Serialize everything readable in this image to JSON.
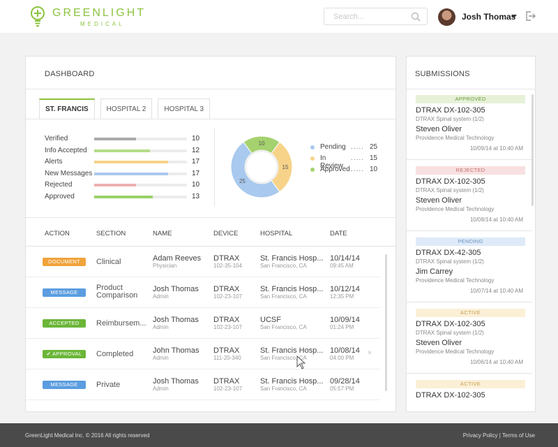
{
  "brand": {
    "name": "GREENLIGHT",
    "sub": "MEDICAL",
    "color": "#8cc43f"
  },
  "header": {
    "search_placeholder": "Search...",
    "user_name": "Josh Thomas"
  },
  "dashboard": {
    "title": "DASHBOARD",
    "tabs": [
      {
        "label": "ST. FRANCIS",
        "active": true
      },
      {
        "label": "HOSPITAL 2",
        "active": false
      },
      {
        "label": "HOSPITAL 3",
        "active": false
      }
    ],
    "stats": [
      {
        "label": "Verified",
        "value": "10",
        "fraction": 0.45,
        "color": "#a9a9a9"
      },
      {
        "label": "Info Accepted",
        "value": "12",
        "fraction": 0.6,
        "color": "#b4dc8a"
      },
      {
        "label": "Alerts",
        "value": "17",
        "fraction": 0.8,
        "color": "#f7d38a"
      },
      {
        "label": "New Messages",
        "value": "17",
        "fraction": 0.8,
        "color": "#a9c9ee"
      },
      {
        "label": "Rejected",
        "value": "10",
        "fraction": 0.45,
        "color": "#eeb0b0"
      },
      {
        "label": "Approved",
        "value": "13",
        "fraction": 0.63,
        "color": "#9ccf6a"
      }
    ],
    "donut": {
      "segments": [
        {
          "label": "Pending",
          "value": 25,
          "color": "#a9c9ee"
        },
        {
          "label": "In Review",
          "value": 15,
          "color": "#f7d38a"
        },
        {
          "label": "Approved",
          "value": 10,
          "color": "#a5d26f"
        }
      ]
    },
    "legend": [
      {
        "label": "Pending",
        "dots": ".....",
        "value": "25",
        "color": "#a9c9ee"
      },
      {
        "label": "In Review",
        "dots": ".....",
        "value": "15",
        "color": "#f7d38a"
      },
      {
        "label": "Approved",
        "dots": ".....",
        "value": "10",
        "color": "#a5d26f"
      }
    ],
    "table": {
      "headers": {
        "action": "ACTION",
        "section": "SECTION",
        "name": "NAME",
        "device": "DEVICE",
        "hospital": "HOSPITAL",
        "date": "DATE"
      },
      "rows": [
        {
          "badge": "DOCUMENT",
          "badge_color": "#f0a33b",
          "section1": "Clinical",
          "section2": "",
          "name": "Adam Reeves",
          "role": "Physician",
          "device": "DTRAX",
          "code": "102-35-104",
          "hospital": "St. Francis Hosp...",
          "city": "San Francisco, CA",
          "date": "10/14/14",
          "time": "09:45 AM"
        },
        {
          "badge": "MESSAGE",
          "badge_color": "#5b9de0",
          "section1": "Product",
          "section2": "Comparison",
          "name": "Josh Thomas",
          "role": "Admin",
          "device": "DTRAX",
          "code": "102-23-107",
          "hospital": "St. Francis Hosp...",
          "city": "San Francisco, CA",
          "date": "10/12/14",
          "time": "12:35 PM"
        },
        {
          "badge": "ACCEPTED",
          "badge_color": "#6bb638",
          "section1": "Reimbursem...",
          "section2": "",
          "name": "Josh Thomas",
          "role": "Admin",
          "device": "DTRAX",
          "code": "102-23-107",
          "hospital": "UCSF",
          "city": "San Francisco, CA",
          "date": "10/09/14",
          "time": "01:24 PM"
        },
        {
          "badge": "✔ APPROVAL",
          "badge_color": "#6bb638",
          "section1": "Completed",
          "section2": "",
          "name": "John Thomas",
          "role": "Admin",
          "device": "DTRAX",
          "code": "111-20-340",
          "hospital": "St. Francis Hosp...",
          "city": "San Francisco, CA",
          "date": "10/08/14",
          "time": "04:00 PM",
          "close": "×"
        },
        {
          "badge": "MESSAGE",
          "badge_color": "#5b9de0",
          "section1": "Private",
          "section2": "",
          "name": "Josh Thomas",
          "role": "Admin",
          "device": "DTRAX",
          "code": "102-23-107",
          "hospital": "St. Francis Hosp...",
          "city": "San Francisco, CA",
          "date": "09/28/14",
          "time": "05:57 PM"
        }
      ]
    }
  },
  "submissions": {
    "title": "SUBMISSIONS",
    "items": [
      {
        "status": "APPROVED",
        "bg": "#e6f1d8",
        "fg": "#6a9a3a",
        "title": "DTRAX DX-102-305",
        "sub": "DTRAX Spinal system (1/2)",
        "person": "Steven Oliver",
        "org": "Providence Medical Technology",
        "date": "10/09/14 at 10:40 AM"
      },
      {
        "status": "REJECTED",
        "bg": "#f8e0e0",
        "fg": "#c27070",
        "title": "DTRAX DX-102-305",
        "sub": "DTRAX Spinal system (1/2)",
        "person": "Steven Oliver",
        "org": "Providence Medical Technology",
        "date": "10/08/14 at 10:40 AM"
      },
      {
        "status": "PENDING",
        "bg": "#deeaf8",
        "fg": "#6f93c0",
        "title": "DTRAX DX-42-305",
        "sub": "DTRAX Spinal system (1/2)",
        "person": "Jim Carrey",
        "org": "Providence Medical Technology",
        "date": "10/07/14 at 10:40 AM"
      },
      {
        "status": "ACTIVE",
        "bg": "#fbefd6",
        "fg": "#c9a050",
        "title": "DTRAX DX-102-305",
        "sub": "DTRAX Spinal system (1/2)",
        "person": "Steven Oliver",
        "org": "Providence Medical Technology",
        "date": "10/06/14 at 10:40 AM"
      },
      {
        "status": "ACTIVE",
        "bg": "#fbefd6",
        "fg": "#c9a050",
        "title": "DTRAX DX-102-305",
        "sub": "",
        "person": "",
        "org": "",
        "date": ""
      }
    ]
  },
  "footer": {
    "copyright": "GreenLight Medical Inc. © 2016 All rights reserved",
    "privacy": "Privacy Policy",
    "separator": "|",
    "terms": "Terms of Use"
  }
}
